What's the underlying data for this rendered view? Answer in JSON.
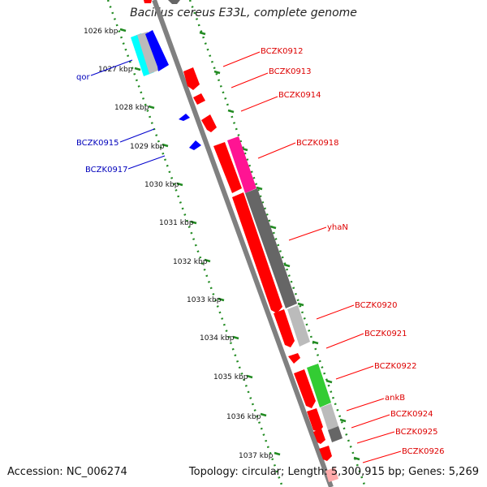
{
  "title": "Bacillus cereus E33L, complete genome",
  "accession": "Accession: NC_006274",
  "summary": "Topology: circular; Length: 5,300,915 bp; Genes: 5,269",
  "colors": {
    "forward_red": "#ff0000",
    "reverse_blue": "#0000ff",
    "cyan": "#00ffff",
    "magenta": "#ff1493",
    "green": "#33cc33",
    "dark_gray": "#666666",
    "light_gray": "#bbbbbb",
    "pink": "#ffaaaa",
    "ruler_green": "#228b22"
  },
  "ruler_labels": [
    "1026 kbp",
    "1027 kbp",
    "1028 kbp",
    "1029 kbp",
    "1030 kbp",
    "1031 kbp",
    "1032 kbp",
    "1033 kbp",
    "1034 kbp",
    "1035 kbp",
    "1036 kbp",
    "1037 kbp"
  ],
  "forward_labels": [
    "BCZK0912",
    "BCZK0913",
    "BCZK0914",
    "BCZK0918",
    "yhaN",
    "BCZK0920",
    "BCZK0921",
    "BCZK0922",
    "ankB",
    "BCZK0924",
    "BCZK0925",
    "BCZK0926"
  ],
  "reverse_labels": [
    "qor",
    "BCZK0915",
    "BCZK0917"
  ]
}
